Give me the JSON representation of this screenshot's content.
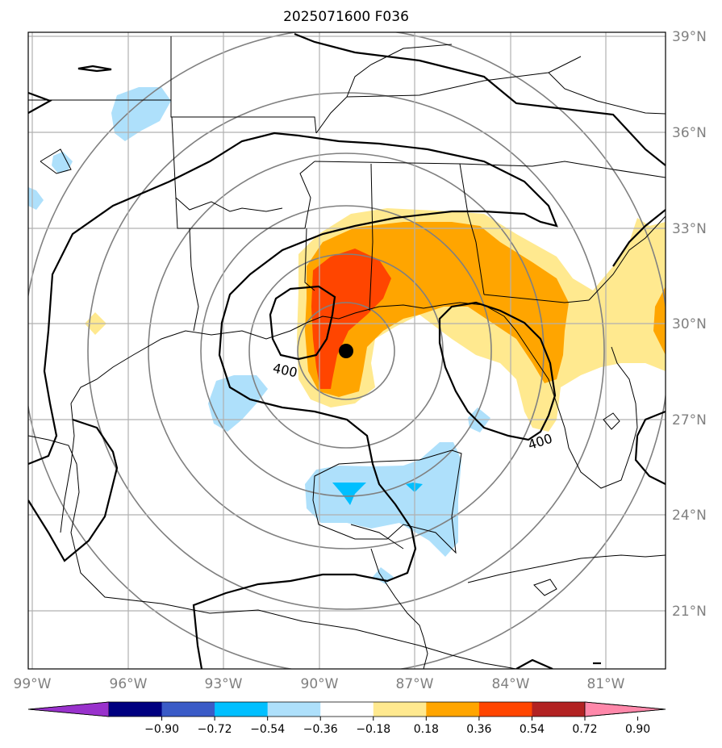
{
  "title": "2025071600 F036",
  "map": {
    "lat_labels": [
      "39°N",
      "36°N",
      "33°N",
      "30°N",
      "27°N",
      "24°N",
      "21°N"
    ],
    "lon_labels": [
      "99°W",
      "96°W",
      "93°W",
      "90°W",
      "87°W",
      "84°W",
      "81°W"
    ],
    "contour_label_value": "400",
    "center_marker": "storm-center",
    "extent": {
      "lon": [
        -99,
        -79.1
      ],
      "lat": [
        19.3,
        39.2
      ]
    }
  },
  "colorbar": {
    "ticks": [
      "−0.90",
      "−0.72",
      "−0.54",
      "−0.36",
      "−0.18",
      "0.18",
      "0.36",
      "0.54",
      "0.72",
      "0.90"
    ],
    "colors": [
      "#9932cc",
      "#000080",
      "#3a5bc7",
      "#00bfff",
      "#aee0fb",
      "#ffffff",
      "#ffe98f",
      "#ffa500",
      "#ff4500",
      "#b22222",
      "#ff88aa"
    ]
  },
  "colors": {
    "yellow": "#ffe98f",
    "orange": "#ffa500",
    "red": "#ff4500",
    "light_blue": "#aee0fb",
    "blue": "#00bfff",
    "grid": "#b0b0b0",
    "range_rings": "#808080"
  }
}
